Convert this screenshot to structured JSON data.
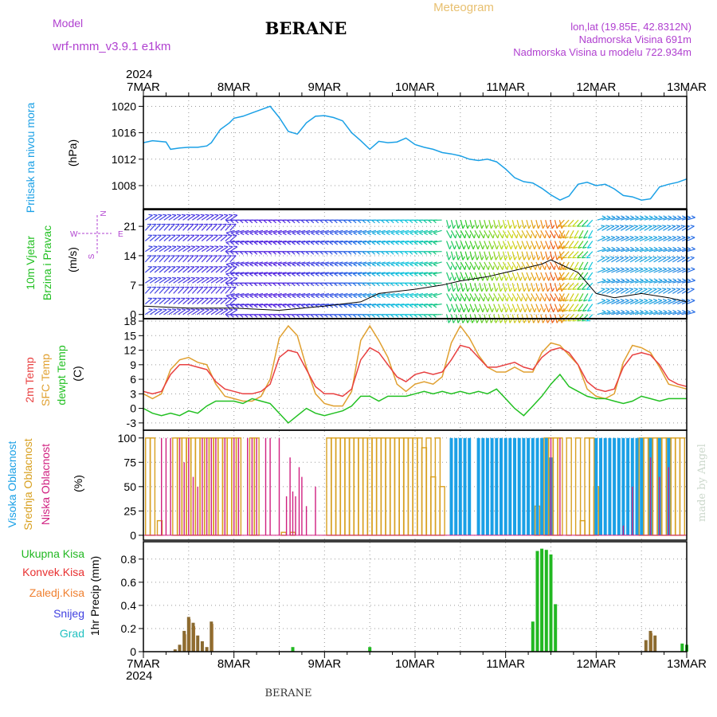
{
  "header": {
    "model_label": "Model",
    "model_name": "wrf-nmm_v3.9.1  e1km",
    "station": "BERANE",
    "title": "Meteogram",
    "lonlat": "lon,lat (19.85E, 42.8312N)",
    "altitude": "Nadmorska Visina 691m",
    "model_altitude": "Nadmorska Visina u modelu 722.934m",
    "footer_station": "BERANE",
    "watermark": "made by Angel",
    "year": "2024",
    "days": [
      "7MAR",
      "8MAR",
      "9MAR",
      "10MAR",
      "11MAR",
      "12MAR",
      "13MAR"
    ]
  },
  "colors": {
    "pressure": "#1aa0e6",
    "t2m": "#e84040",
    "sfc": "#e0a030",
    "dewpoint": "#22c022",
    "high_cloud": "#1aa0e6",
    "mid_cloud": "#d8a020",
    "low_cloud": "#d02080",
    "total_precip": "#22b822",
    "conv_precip": "#e83030",
    "frozen_precip": "#f08030",
    "snow": "#4040e0",
    "hail": "#20c0c0",
    "label_purple": "#b040d0"
  },
  "panels": {
    "pressure": {
      "ylabel": "Pritisak na nivou mora",
      "unit": "(hPa)",
      "ticks": [
        "1020",
        "1016",
        "1012",
        "1008"
      ]
    },
    "wind": {
      "ylabel1": "10m Vjetar",
      "ylabel2": "Brzina i Pravac",
      "unit": "(m/s)",
      "ticks": [
        "21",
        "14",
        "7",
        "0"
      ],
      "compass": {
        "n": "N",
        "w": "W",
        "e": "E",
        "s": "S"
      }
    },
    "temp": {
      "label1": "2m Temp",
      "label2": "SFC Temp",
      "label3": "dewpt Temp",
      "unit": "(C)",
      "ticks": [
        "18",
        "15",
        "12",
        "9",
        "6",
        "3",
        "0",
        "-3"
      ]
    },
    "cloud": {
      "label1": "Visoka Oblacnost",
      "label2": "Srednja Oblacnost",
      "label3": "Niska Oblacnost",
      "unit": "(%)",
      "ticks": [
        "100",
        "75",
        "50",
        "25",
        "0"
      ]
    },
    "precip": {
      "legend": [
        "Ukupna Kisa",
        "Konvek.Kisa",
        "Zaledj.Kisa",
        "Snijeg",
        "Grad"
      ],
      "unit": "1hr Precip (mm)",
      "ticks": [
        "0.8",
        "0.6",
        "0.4",
        "0.2",
        "0"
      ]
    }
  },
  "chart_data": [
    {
      "type": "line",
      "title": "",
      "ylabel": "Pritisak na nivou mora (hPa)",
      "x_unit": "days since 7MAR 2024 00UTC",
      "ylim": [
        1004.5,
        1021.5
      ],
      "series": [
        {
          "name": "Pritisak na nivou mora",
          "x": [
            0,
            0.1,
            0.25,
            0.3,
            0.4,
            0.5,
            0.6,
            0.7,
            0.75,
            0.85,
            0.95,
            1.0,
            1.1,
            1.2,
            1.3,
            1.4,
            1.5,
            1.6,
            1.7,
            1.8,
            1.9,
            2.0,
            2.1,
            2.2,
            2.3,
            2.4,
            2.5,
            2.6,
            2.7,
            2.8,
            2.9,
            3.0,
            3.1,
            3.2,
            3.3,
            3.4,
            3.5,
            3.6,
            3.7,
            3.8,
            3.9,
            4.0,
            4.1,
            4.2,
            4.3,
            4.4,
            4.5,
            4.6,
            4.7,
            4.8,
            4.9,
            5.0,
            5.1,
            5.2,
            5.3,
            5.4,
            5.5,
            5.6,
            5.7,
            5.8,
            5.9,
            6.0
          ],
          "y": [
            1014.5,
            1014.8,
            1014.6,
            1013.5,
            1013.7,
            1013.8,
            1013.8,
            1014.0,
            1014.5,
            1016.5,
            1017.5,
            1018.2,
            1018.5,
            1019.0,
            1019.5,
            1020.0,
            1018.3,
            1016.2,
            1015.8,
            1017.5,
            1018.5,
            1018.6,
            1018.3,
            1017.8,
            1016.0,
            1014.8,
            1013.5,
            1014.7,
            1014.5,
            1014.6,
            1015.2,
            1014.2,
            1013.8,
            1013.5,
            1013.0,
            1012.8,
            1012.5,
            1012.0,
            1011.8,
            1012.0,
            1011.6,
            1010.5,
            1009.2,
            1008.6,
            1008.4,
            1007.6,
            1006.6,
            1005.8,
            1006.4,
            1008.2,
            1008.5,
            1008.0,
            1008.2,
            1007.5,
            1006.5,
            1006.3,
            1005.8,
            1006.0,
            1007.8,
            1008.2,
            1008.5,
            1009.0
          ]
        }
      ]
    },
    {
      "type": "line",
      "title": "",
      "ylabel": "10m Vjetar Brzina i Pravac (m/s)",
      "x_unit": "days since 7MAR 2024 00UTC",
      "ylim": [
        -1,
        25
      ],
      "series": [
        {
          "name": "Brzina",
          "x": [
            0,
            0.5,
            1.0,
            1.5,
            2.0,
            2.4,
            2.6,
            3.0,
            3.3,
            3.5,
            3.8,
            4.0,
            4.2,
            4.4,
            4.5,
            4.6,
            4.8,
            5.0,
            5.2,
            5.5,
            5.8,
            6.0
          ],
          "y": [
            2.0,
            1.5,
            1.5,
            1.0,
            2.0,
            3.0,
            5.0,
            6.0,
            7.0,
            8.0,
            9.0,
            10.0,
            11.0,
            12.0,
            13.0,
            12.0,
            10.0,
            5.0,
            4.0,
            5.0,
            4.0,
            3.0
          ]
        }
      ]
    },
    {
      "type": "line",
      "title": "",
      "ylabel": "(C)",
      "x_unit": "days since 7MAR 2024 00UTC",
      "ylim": [
        -4.5,
        18.5
      ],
      "series": [
        {
          "name": "2m Temp",
          "x": [
            0,
            0.1,
            0.2,
            0.3,
            0.4,
            0.5,
            0.6,
            0.7,
            0.8,
            0.9,
            1.0,
            1.1,
            1.2,
            1.3,
            1.4,
            1.5,
            1.6,
            1.7,
            1.8,
            1.9,
            2.0,
            2.1,
            2.2,
            2.3,
            2.4,
            2.5,
            2.6,
            2.7,
            2.8,
            2.9,
            3.0,
            3.1,
            3.2,
            3.3,
            3.4,
            3.5,
            3.6,
            3.7,
            3.8,
            3.9,
            4.0,
            4.1,
            4.2,
            4.3,
            4.4,
            4.5,
            4.6,
            4.7,
            4.8,
            4.9,
            5.0,
            5.1,
            5.2,
            5.3,
            5.4,
            5.5,
            5.6,
            5.7,
            5.8,
            5.9,
            6.0
          ],
          "y": [
            3.5,
            3.0,
            3.5,
            7.0,
            9.0,
            9.0,
            8.5,
            8.0,
            5.5,
            4.0,
            3.5,
            3.0,
            3.0,
            3.5,
            5.0,
            10.5,
            12.0,
            11.5,
            8.0,
            4.5,
            3.0,
            3.0,
            2.5,
            4.0,
            10.0,
            12.5,
            11.5,
            9.0,
            6.5,
            5.5,
            7.0,
            7.5,
            7.0,
            7.5,
            10.0,
            13.0,
            12.5,
            10.5,
            8.5,
            8.5,
            9.0,
            9.5,
            8.5,
            8.0,
            10.5,
            12.0,
            12.5,
            11.5,
            9.0,
            5.5,
            4.0,
            3.5,
            4.0,
            8.5,
            11.0,
            11.5,
            11.0,
            9.0,
            6.0,
            5.0,
            4.5
          ]
        },
        {
          "name": "SFC Temp",
          "x": [
            0,
            0.1,
            0.2,
            0.3,
            0.4,
            0.5,
            0.6,
            0.7,
            0.8,
            0.9,
            1.0,
            1.1,
            1.2,
            1.3,
            1.4,
            1.5,
            1.6,
            1.7,
            1.8,
            1.9,
            2.0,
            2.1,
            2.2,
            2.3,
            2.4,
            2.5,
            2.6,
            2.7,
            2.8,
            2.9,
            3.0,
            3.1,
            3.2,
            3.3,
            3.4,
            3.5,
            3.6,
            3.7,
            3.8,
            3.9,
            4.0,
            4.1,
            4.2,
            4.3,
            4.4,
            4.5,
            4.6,
            4.7,
            4.8,
            4.9,
            5.0,
            5.1,
            5.2,
            5.3,
            5.4,
            5.5,
            5.6,
            5.7,
            5.8,
            5.9,
            6.0
          ],
          "y": [
            3.0,
            2.0,
            3.0,
            8.0,
            10.0,
            10.5,
            9.5,
            9.0,
            5.0,
            2.5,
            2.0,
            1.5,
            1.5,
            2.5,
            6.0,
            14.5,
            17.0,
            15.0,
            8.5,
            3.0,
            1.0,
            0.5,
            0.5,
            3.5,
            14.0,
            17.0,
            14.0,
            10.5,
            5.0,
            3.5,
            5.0,
            5.5,
            5.0,
            6.5,
            13.5,
            17.0,
            14.5,
            11.0,
            8.5,
            7.5,
            7.5,
            8.5,
            7.5,
            7.5,
            11.5,
            13.5,
            13.0,
            11.0,
            9.0,
            4.0,
            2.5,
            2.0,
            3.0,
            9.5,
            13.0,
            12.5,
            11.5,
            8.5,
            5.0,
            4.5,
            4.0
          ]
        },
        {
          "name": "dewpt Temp",
          "x": [
            0,
            0.1,
            0.2,
            0.3,
            0.4,
            0.5,
            0.6,
            0.7,
            0.8,
            0.9,
            1.0,
            1.1,
            1.2,
            1.3,
            1.4,
            1.5,
            1.6,
            1.7,
            1.8,
            1.9,
            2.0,
            2.1,
            2.2,
            2.3,
            2.4,
            2.5,
            2.6,
            2.7,
            2.8,
            2.9,
            3.0,
            3.1,
            3.2,
            3.3,
            3.4,
            3.5,
            3.6,
            3.7,
            3.8,
            3.9,
            4.0,
            4.1,
            4.2,
            4.3,
            4.4,
            4.5,
            4.6,
            4.7,
            4.8,
            4.9,
            5.0,
            5.1,
            5.2,
            5.3,
            5.4,
            5.5,
            5.6,
            5.7,
            5.8,
            5.9,
            6.0
          ],
          "y": [
            0.0,
            -1.0,
            -1.5,
            -1.0,
            -1.5,
            -0.5,
            -1.0,
            0.5,
            1.5,
            1.5,
            1.5,
            1.0,
            2.0,
            1.5,
            1.0,
            -1.0,
            -3.0,
            -1.5,
            0.0,
            -1.0,
            -1.5,
            -1.0,
            -0.5,
            0.5,
            2.5,
            2.5,
            1.5,
            2.5,
            2.5,
            2.5,
            3.0,
            3.5,
            3.0,
            3.5,
            3.0,
            3.5,
            3.0,
            3.5,
            3.0,
            4.0,
            2.0,
            0.0,
            -1.5,
            0.5,
            2.5,
            5.0,
            7.0,
            4.5,
            3.5,
            2.5,
            2.0,
            2.0,
            1.5,
            1.0,
            1.5,
            2.5,
            2.0,
            1.5,
            2.0,
            2.0,
            2.0
          ]
        }
      ]
    },
    {
      "type": "bar",
      "title": "",
      "ylabel": "(%)",
      "x_unit": "days since 7MAR 2024 00UTC",
      "ylim": [
        0,
        100
      ],
      "series": [
        {
          "name": "Visoka Oblacnost",
          "x": [
            3.4,
            3.45,
            3.5,
            3.55,
            3.6,
            3.7,
            3.75,
            3.8,
            3.85,
            3.9,
            3.95,
            4.0,
            4.05,
            4.1,
            4.15,
            4.2,
            4.25,
            4.3,
            4.35,
            4.4,
            4.45,
            4.5,
            5.0,
            5.05,
            5.1,
            5.15,
            5.2,
            5.25,
            5.3,
            5.35,
            5.4,
            5.45,
            5.5,
            5.6,
            5.7,
            5.8
          ],
          "y": [
            100,
            100,
            100,
            100,
            100,
            100,
            100,
            100,
            100,
            100,
            100,
            100,
            100,
            100,
            100,
            100,
            100,
            100,
            100,
            100,
            100,
            80,
            100,
            100,
            100,
            100,
            100,
            100,
            100,
            100,
            100,
            100,
            100,
            100,
            100,
            100
          ]
        },
        {
          "name": "Srednja Oblacnost",
          "x": [
            0.05,
            0.1,
            0.18,
            0.35,
            0.4,
            0.45,
            0.5,
            0.55,
            0.6,
            0.65,
            0.7,
            0.75,
            0.8,
            0.85,
            0.9,
            0.95,
            1.0,
            1.05,
            1.2,
            1.25,
            1.55,
            1.65,
            2.05,
            2.1,
            2.15,
            2.2,
            2.25,
            2.3,
            2.35,
            2.4,
            2.45,
            2.5,
            2.55,
            2.6,
            2.65,
            2.7,
            2.75,
            2.8,
            2.85,
            2.9,
            2.95,
            3.0,
            3.05,
            3.1,
            3.15,
            3.2,
            3.25,
            3.3,
            4.35,
            4.45,
            4.5,
            4.55,
            4.6,
            4.7,
            4.8,
            4.85,
            4.9,
            4.95,
            5.0,
            5.5,
            5.55,
            5.6,
            5.65,
            5.7,
            5.75,
            5.8,
            5.85,
            5.9,
            5.95
          ],
          "y": [
            100,
            100,
            15,
            100,
            100,
            100,
            100,
            100,
            100,
            100,
            100,
            100,
            100,
            100,
            100,
            100,
            100,
            100,
            100,
            100,
            3,
            3,
            100,
            100,
            100,
            100,
            100,
            100,
            100,
            100,
            100,
            100,
            100,
            100,
            100,
            100,
            100,
            100,
            100,
            100,
            100,
            100,
            100,
            90,
            100,
            60,
            100,
            50,
            30,
            100,
            100,
            100,
            100,
            100,
            100,
            15,
            100,
            100,
            50,
            100,
            100,
            100,
            100,
            100,
            100,
            100,
            100,
            100,
            100
          ]
        },
        {
          "name": "Niska Oblacnost",
          "x": [
            0.2,
            0.25,
            0.3,
            0.4,
            0.45,
            0.5,
            0.55,
            0.6,
            0.65,
            0.7,
            0.75,
            0.8,
            0.9,
            1.0,
            1.05,
            1.15,
            1.2,
            1.25,
            1.35,
            1.4,
            1.5,
            1.58,
            1.62,
            1.65,
            1.68,
            1.72,
            1.75,
            1.8,
            1.9,
            4.5,
            4.6,
            5.3,
            5.4,
            5.6,
            5.7,
            5.8
          ],
          "y": [
            100,
            100,
            100,
            100,
            75,
            100,
            60,
            50,
            100,
            100,
            100,
            100,
            100,
            100,
            100,
            100,
            100,
            100,
            100,
            100,
            100,
            40,
            80,
            45,
            40,
            70,
            60,
            30,
            50,
            100,
            100,
            10,
            50,
            80,
            60,
            70
          ]
        }
      ]
    },
    {
      "type": "bar",
      "title": "",
      "ylabel": "1hr Precip (mm)",
      "x_unit": "days since 7MAR 2024 00UTC",
      "ylim": [
        0,
        0.95
      ],
      "series": [
        {
          "name": "Ukupna Kisa",
          "x": [
            0.35,
            0.4,
            0.45,
            0.5,
            0.55,
            0.6,
            0.65,
            0.7,
            0.75,
            1.65,
            2.5,
            4.3,
            4.35,
            4.4,
            4.45,
            4.5,
            4.55,
            5.55,
            5.6,
            5.65,
            5.95,
            6.0
          ],
          "y": [
            0.02,
            0.06,
            0.18,
            0.3,
            0.25,
            0.14,
            0.09,
            0.04,
            0.26,
            0.04,
            0.04,
            0.26,
            0.87,
            0.89,
            0.88,
            0.84,
            0.41,
            0.1,
            0.18,
            0.14,
            0.07,
            0.06
          ]
        },
        {
          "name": "Konvek.Kisa",
          "x": [
            0.45,
            0.5,
            0.55,
            0.75,
            5.6
          ],
          "y": [
            0.15,
            0.28,
            0.22,
            0.24,
            0.16
          ]
        }
      ]
    }
  ]
}
